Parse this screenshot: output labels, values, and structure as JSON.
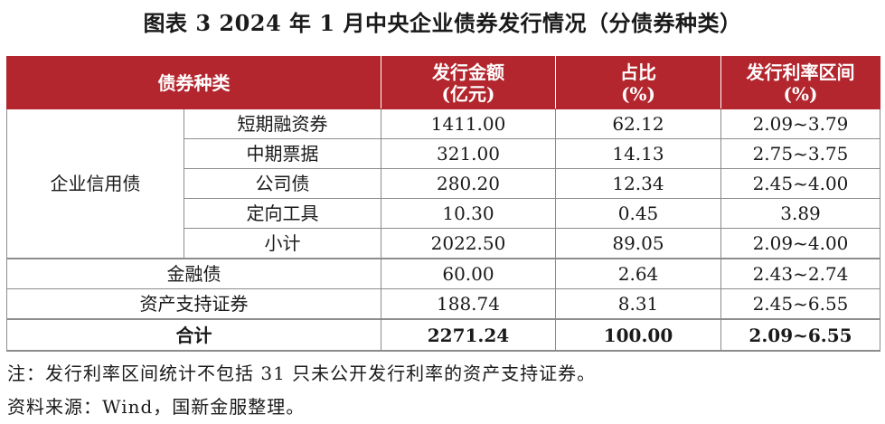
{
  "title": "图表 3 2024 年 1 月中央企业债券发行情况（分债券种类）",
  "table": {
    "headers": {
      "type": "债券种类",
      "amount_line1": "发行金额",
      "amount_line2": "(亿元)",
      "share_line1": "占比",
      "share_line2": "(%)",
      "rate_line1": "发行利率区间",
      "rate_line2": "(%)"
    },
    "group_label": "企业信用债",
    "group_rows": [
      {
        "name": "短期融资券",
        "amount": "1411.00",
        "share": "62.12",
        "rate": "2.09~3.79"
      },
      {
        "name": "中期票据",
        "amount": "321.00",
        "share": "14.13",
        "rate": "2.75~3.75"
      },
      {
        "name": "公司债",
        "amount": "280.20",
        "share": "12.34",
        "rate": "2.45~4.00"
      },
      {
        "name": "定向工具",
        "amount": "10.30",
        "share": "0.45",
        "rate": "3.89"
      },
      {
        "name": "小计",
        "amount": "2022.50",
        "share": "89.05",
        "rate": "2.09~4.00"
      }
    ],
    "other_rows": [
      {
        "name": "金融债",
        "amount": "60.00",
        "share": "2.64",
        "rate": "2.43~2.74"
      },
      {
        "name": "资产支持证券",
        "amount": "188.74",
        "share": "8.31",
        "rate": "2.45~6.55"
      }
    ],
    "total": {
      "name": "合计",
      "amount": "2271.24",
      "share": "100.00",
      "rate": "2.09~6.55"
    }
  },
  "notes": {
    "note": "注：发行利率区间统计不包括 31 只未公开发行利率的资产支持证券。",
    "source": "资料来源：Wind，国新金服整理。"
  },
  "colors": {
    "header_bg": "#b3262e",
    "header_text": "#ffffff"
  }
}
